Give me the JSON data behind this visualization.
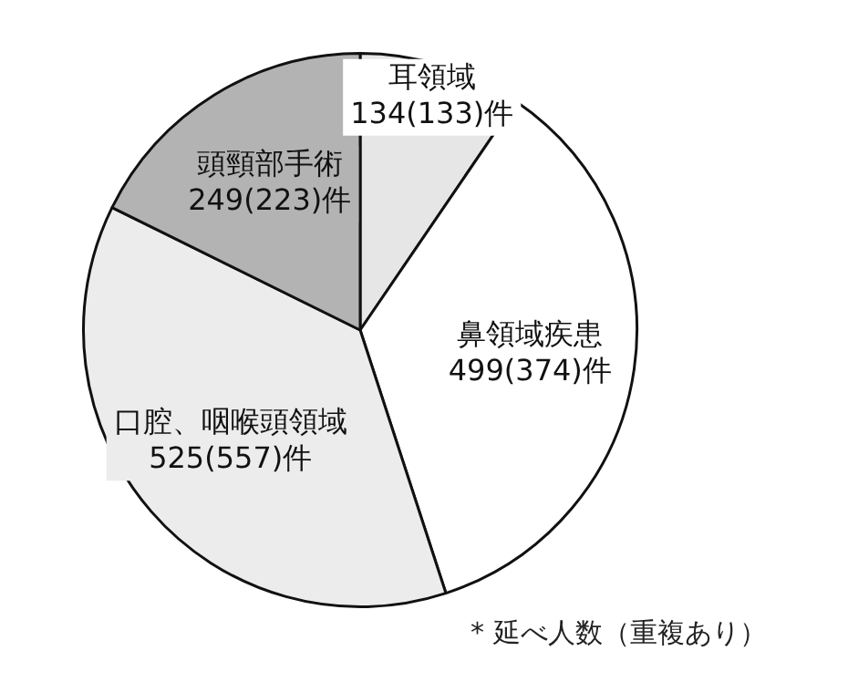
{
  "chart_data": {
    "type": "pie",
    "categories": [
      "耳領域",
      "鼻領域疾患",
      "口腔、咽喉頭領域",
      "頭頸部手術"
    ],
    "values": [
      134,
      499,
      525,
      249
    ],
    "value_labels": [
      "134(133)件",
      "499(374)件",
      "525(557)件",
      "249(223)件"
    ],
    "colors": [
      "#e6e6e6",
      "#ffffff",
      "#ececec",
      "#b3b3b3"
    ],
    "annotations": [
      "* 延べ人数（重複あり）"
    ],
    "legend": false
  }
}
